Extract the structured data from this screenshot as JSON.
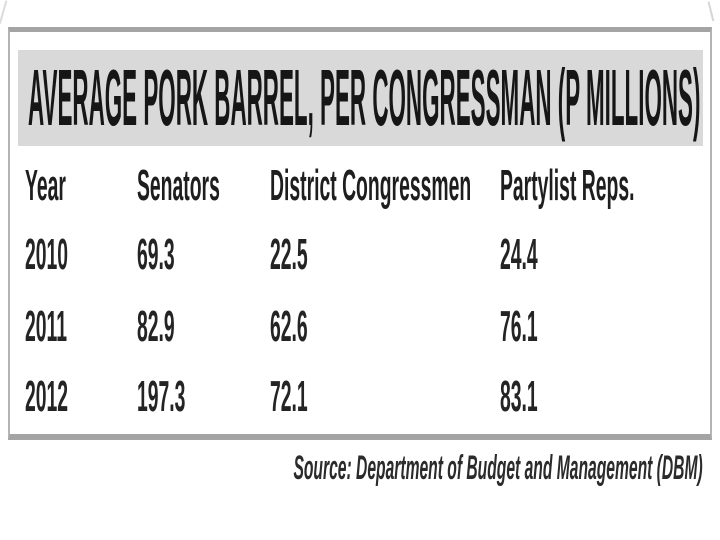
{
  "colors": {
    "title_band": "#d9d9d9",
    "panel_border": "#a4a4a4",
    "panel_border_light": "#b4b4b4",
    "text": "#242424"
  },
  "title": {
    "text": "AVERAGE PORK BARREL, PER CONGRESSMAN (P MILLIONS)"
  },
  "table": {
    "columns": [
      "Year",
      "Senators",
      "District Congressmen",
      "Partylist Reps."
    ],
    "rows": [
      [
        "2010",
        "69.3",
        "22.5",
        "24.4"
      ],
      [
        "2011",
        "82.9",
        "62.6",
        "76.1"
      ],
      [
        "2012",
        "197.3",
        "72.1",
        "83.1"
      ]
    ]
  },
  "source": {
    "text": "Source: Department of Budget and Management (DBM)"
  },
  "chart_data": {
    "type": "table",
    "title": "AVERAGE PORK BARREL, PER CONGRESSMAN (P MILLIONS)",
    "unit": "P millions",
    "columns": [
      "Year",
      "Senators",
      "District Congressmen",
      "Partylist Reps."
    ],
    "categories": [
      "2010",
      "2011",
      "2012"
    ],
    "rows": [
      [
        "2010",
        69.3,
        22.5,
        24.4
      ],
      [
        "2011",
        82.9,
        62.6,
        76.1
      ],
      [
        "2012",
        197.3,
        72.1,
        83.1
      ]
    ],
    "series": [
      {
        "name": "Senators",
        "values": [
          69.3,
          82.9,
          197.3
        ]
      },
      {
        "name": "District Congressmen",
        "values": [
          22.5,
          62.6,
          72.1
        ]
      },
      {
        "name": "Partylist Reps.",
        "values": [
          24.4,
          76.1,
          83.1
        ]
      }
    ],
    "source": "Source: Department of Budget and Management (DBM)"
  }
}
